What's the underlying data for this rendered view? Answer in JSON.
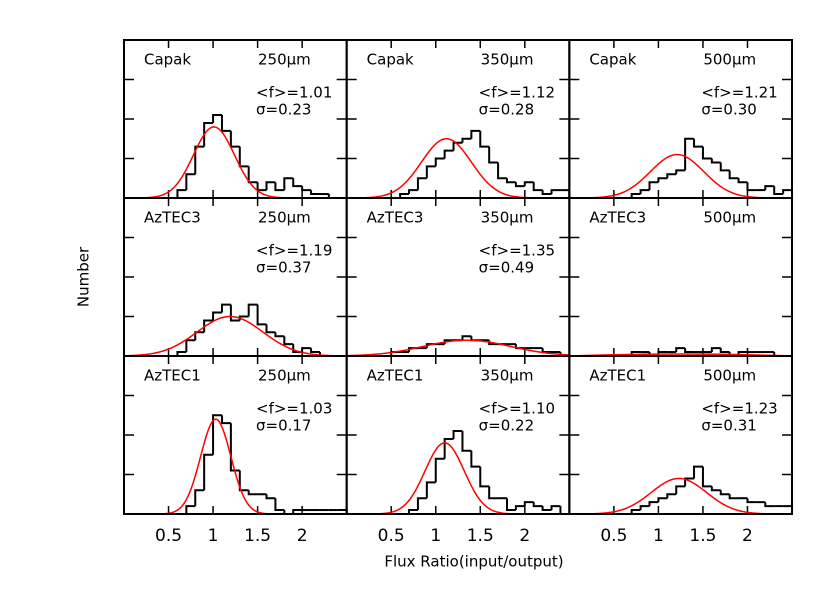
{
  "xlabel": "Flux Ratio(input/output)",
  "ylabel": "Number",
  "chart_data": [
    {
      "type": "histogram",
      "name": "Capak",
      "band": "250μm",
      "bins": [
        0.5,
        0.6,
        0.7,
        0.8,
        0.9,
        1.0,
        1.1,
        1.2,
        1.3,
        1.4,
        1.5,
        1.6,
        1.7,
        1.8,
        1.9,
        2.0,
        2.1,
        2.2,
        2.3,
        2.4,
        2.5
      ],
      "values": [
        0,
        2,
        6,
        13,
        19,
        21,
        17,
        13,
        8,
        4,
        2,
        4,
        2,
        5,
        3,
        2,
        1,
        1,
        0,
        0
      ],
      "color": "#000000",
      "fit": {
        "mean": 1.01,
        "mean_label": "<f>=1.01",
        "sigma": 0.23,
        "sigma_label": "σ=0.23",
        "peak": 18,
        "color": "#ff0000"
      },
      "xlim": [
        0,
        2.5
      ],
      "xticks": [
        0.5,
        1,
        1.5,
        2
      ],
      "ylim": [
        0,
        40
      ],
      "yticks": [
        10,
        20,
        30
      ]
    },
    {
      "type": "histogram",
      "name": "Capak",
      "band": "350μm",
      "bins": [
        0.5,
        0.6,
        0.7,
        0.8,
        0.9,
        1.0,
        1.1,
        1.2,
        1.3,
        1.4,
        1.5,
        1.6,
        1.7,
        1.8,
        1.9,
        2.0,
        2.1,
        2.2,
        2.3,
        2.4,
        2.5
      ],
      "values": [
        0,
        1,
        2,
        5,
        8,
        10,
        12,
        14,
        15,
        17,
        13,
        9,
        5,
        4,
        3,
        4,
        2,
        1,
        2,
        2
      ],
      "color": "#000000",
      "fit": {
        "mean": 1.12,
        "mean_label": "<f>=1.12",
        "sigma": 0.28,
        "sigma_label": "σ=0.28",
        "peak": 15,
        "color": "#ff0000"
      },
      "xlim": [
        0,
        2.5
      ],
      "xticks": [
        0.5,
        1,
        1.5,
        2
      ],
      "ylim": [
        0,
        40
      ],
      "yticks": [
        10,
        20,
        30
      ]
    },
    {
      "type": "histogram",
      "name": "Capak",
      "band": "500μm",
      "bins": [
        0.5,
        0.6,
        0.7,
        0.8,
        0.9,
        1.0,
        1.1,
        1.2,
        1.3,
        1.4,
        1.5,
        1.6,
        1.7,
        1.8,
        1.9,
        2.0,
        2.1,
        2.2,
        2.3,
        2.4,
        2.5
      ],
      "values": [
        0,
        0,
        1,
        2,
        4,
        5,
        6,
        7,
        15,
        13,
        10,
        9,
        7,
        5,
        4,
        2,
        2,
        3,
        1,
        2
      ],
      "color": "#000000",
      "fit": {
        "mean": 1.21,
        "mean_label": "<f>=1.21",
        "sigma": 0.3,
        "sigma_label": "σ=0.30",
        "peak": 11,
        "color": "#ff0000"
      },
      "xlim": [
        0,
        2.5
      ],
      "xticks": [
        0.5,
        1,
        1.5,
        2
      ],
      "ylim": [
        0,
        40
      ],
      "yticks": [
        10,
        20,
        30
      ]
    },
    {
      "type": "histogram",
      "name": "AzTEC3",
      "band": "250μm",
      "bins": [
        0.5,
        0.6,
        0.7,
        0.8,
        0.9,
        1.0,
        1.1,
        1.2,
        1.3,
        1.4,
        1.5,
        1.6,
        1.7,
        1.8,
        1.9,
        2.0,
        2.1,
        2.2,
        2.3,
        2.4,
        2.5
      ],
      "values": [
        0,
        1,
        4,
        6,
        9,
        11,
        13,
        9,
        10,
        13,
        8,
        6,
        5,
        3,
        1,
        2,
        1,
        0,
        0,
        0
      ],
      "color": "#000000",
      "fit": {
        "mean": 1.19,
        "mean_label": "<f>=1.19",
        "sigma": 0.37,
        "sigma_label": "σ=0.37",
        "peak": 10,
        "color": "#ff0000"
      },
      "xlim": [
        0,
        2.5
      ],
      "xticks": [
        0.5,
        1,
        1.5,
        2
      ],
      "ylim": [
        0,
        40
      ],
      "yticks": [
        10,
        20,
        30
      ]
    },
    {
      "type": "histogram",
      "name": "AzTEC3",
      "band": "350μm",
      "bins": [
        0.5,
        0.6,
        0.7,
        0.8,
        0.9,
        1.0,
        1.1,
        1.2,
        1.3,
        1.4,
        1.5,
        1.6,
        1.7,
        1.8,
        1.9,
        2.0,
        2.1,
        2.2,
        2.3,
        2.4,
        2.5
      ],
      "values": [
        1,
        1,
        2,
        2,
        3,
        3,
        4,
        4,
        5,
        4,
        4,
        3,
        3,
        3,
        2,
        2,
        2,
        1,
        1,
        0
      ],
      "color": "#000000",
      "fit": {
        "mean": 1.35,
        "mean_label": "<f>=1.35",
        "sigma": 0.49,
        "sigma_label": "σ=0.49",
        "peak": 4,
        "color": "#ff0000"
      },
      "xlim": [
        0,
        2.5
      ],
      "xticks": [
        0.5,
        1,
        1.5,
        2
      ],
      "ylim": [
        0,
        40
      ],
      "yticks": [
        10,
        20,
        30
      ]
    },
    {
      "type": "histogram",
      "name": "AzTEC3",
      "band": "500μm",
      "bins": [
        0.5,
        0.6,
        0.7,
        0.8,
        0.9,
        1.0,
        1.1,
        1.2,
        1.3,
        1.4,
        1.5,
        1.6,
        1.7,
        1.8,
        1.9,
        2.0,
        2.1,
        2.2,
        2.3,
        2.4,
        2.5
      ],
      "values": [
        0,
        0,
        1,
        1,
        0,
        1,
        1,
        2,
        1,
        1,
        1,
        2,
        1,
        0,
        1,
        1,
        1,
        1,
        0,
        0
      ],
      "color": "#000000",
      "fit": {
        "peak": 1,
        "color": "#ff0000"
      },
      "xlim": [
        0,
        2.5
      ],
      "xticks": [
        0.5,
        1,
        1.5,
        2
      ],
      "ylim": [
        0,
        40
      ],
      "yticks": [
        10,
        20,
        30
      ]
    },
    {
      "type": "histogram",
      "name": "AzTEC1",
      "band": "250μm",
      "bins": [
        0.5,
        0.6,
        0.7,
        0.8,
        0.9,
        1.0,
        1.1,
        1.2,
        1.3,
        1.4,
        1.5,
        1.6,
        1.7,
        1.8,
        1.9,
        2.0,
        2.1,
        2.2,
        2.3,
        2.4,
        2.5
      ],
      "values": [
        0,
        0,
        2,
        6,
        15,
        25,
        23,
        11,
        6,
        5,
        5,
        4,
        1,
        0,
        1,
        1,
        1,
        1,
        1,
        1
      ],
      "color": "#000000",
      "fit": {
        "mean": 1.03,
        "mean_label": "<f>=1.03",
        "sigma": 0.17,
        "sigma_label": "σ=0.17",
        "peak": 24,
        "color": "#ff0000"
      },
      "xlim": [
        0,
        2.5
      ],
      "xticks": [
        0.5,
        1,
        1.5,
        2
      ],
      "ylim": [
        0,
        40
      ],
      "yticks": [
        10,
        20,
        30
      ]
    },
    {
      "type": "histogram",
      "name": "AzTEC1",
      "band": "350μm",
      "bins": [
        0.5,
        0.6,
        0.7,
        0.8,
        0.9,
        1.0,
        1.1,
        1.2,
        1.3,
        1.4,
        1.5,
        1.6,
        1.7,
        1.8,
        1.9,
        2.0,
        2.1,
        2.2,
        2.3,
        2.4,
        2.5
      ],
      "values": [
        0,
        0,
        1,
        4,
        8,
        14,
        19,
        21,
        16,
        12,
        7,
        4,
        4,
        1,
        2,
        3,
        2,
        1,
        2,
        0
      ],
      "color": "#000000",
      "fit": {
        "mean": 1.1,
        "mean_label": "<f>=1.10",
        "sigma": 0.22,
        "sigma_label": "σ=0.22",
        "peak": 18,
        "color": "#ff0000"
      },
      "xlim": [
        0,
        2.5
      ],
      "xticks": [
        0.5,
        1,
        1.5,
        2
      ],
      "ylim": [
        0,
        40
      ],
      "yticks": [
        10,
        20,
        30
      ]
    },
    {
      "type": "histogram",
      "name": "AzTEC1",
      "band": "500μm",
      "bins": [
        0.5,
        0.6,
        0.7,
        0.8,
        0.9,
        1.0,
        1.1,
        1.2,
        1.3,
        1.4,
        1.5,
        1.6,
        1.7,
        1.8,
        1.9,
        2.0,
        2.1,
        2.2,
        2.3,
        2.4,
        2.5
      ],
      "values": [
        0,
        0,
        1,
        2,
        3,
        4,
        5,
        7,
        9,
        12,
        7,
        6,
        5,
        4,
        4,
        3,
        3,
        2,
        2,
        2
      ],
      "color": "#000000",
      "fit": {
        "mean": 1.23,
        "mean_label": "<f>=1.23",
        "sigma": 0.31,
        "sigma_label": "σ=0.31",
        "peak": 9,
        "color": "#ff0000"
      },
      "xlim": [
        0,
        2.5
      ],
      "xticks": [
        0.5,
        1,
        1.5,
        2
      ],
      "ylim": [
        0,
        40
      ],
      "yticks": [
        10,
        20,
        30
      ]
    }
  ]
}
